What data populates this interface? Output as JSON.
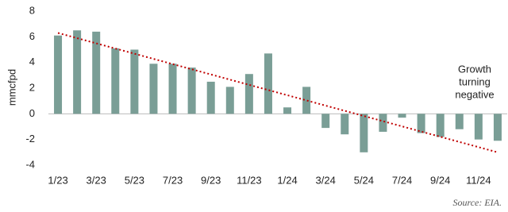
{
  "chart_data": {
    "type": "bar",
    "y_label": "mmcfpd",
    "categories": [
      "1/23",
      null,
      "3/23",
      null,
      "5/23",
      null,
      "7/23",
      null,
      "9/23",
      null,
      "11/23",
      null,
      "1/24",
      null,
      "3/24",
      null,
      "5/24",
      null,
      "7/24",
      null,
      "9/24",
      null,
      "11/24",
      null
    ],
    "values": [
      6.1,
      6.5,
      6.4,
      5.1,
      5.0,
      3.9,
      3.9,
      3.6,
      2.5,
      2.1,
      3.1,
      4.7,
      0.5,
      2.1,
      -1.1,
      -1.6,
      -3.0,
      -1.4,
      -0.3,
      -1.5,
      -1.8,
      -1.2,
      -2.0,
      -2.1
    ],
    "color": "#7a9e96",
    "trendline": {
      "color": "#c00000",
      "values": [
        6.3,
        -3.0
      ]
    },
    "ylim": [
      -4,
      8
    ],
    "yticks": [
      -4,
      -2,
      0,
      2,
      4,
      6,
      8
    ],
    "annotation": [
      "Growth",
      "turning",
      "negative"
    ],
    "source": "Source: EIA."
  }
}
